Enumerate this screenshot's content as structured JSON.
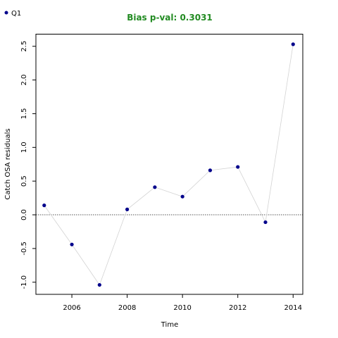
{
  "colors": {
    "title": "#228B22",
    "point": "#00008B",
    "line": "#D3D3D3",
    "zero_line": "#555555"
  },
  "chart_data": {
    "type": "scatter",
    "title": "Bias p-val: 0.3031",
    "xlabel": "Time",
    "ylabel": "Catch OSA residuals",
    "xlim": [
      2004.7,
      2014.35
    ],
    "ylim": [
      -1.18,
      2.68
    ],
    "x_ticks": [
      2006,
      2008,
      2010,
      2012,
      2014
    ],
    "y_ticks": [
      -1.0,
      -0.5,
      0.0,
      0.5,
      1.0,
      1.5,
      2.0,
      2.5
    ],
    "y_tick_labels": [
      "-1.0",
      "-0.5",
      "0.0",
      "0.5",
      "1.0",
      "1.5",
      "2.0",
      "2.5"
    ],
    "reference_line": {
      "y": 0.0,
      "style": "dotted"
    },
    "legend": {
      "placement": "top-left",
      "entries": [
        "Q1"
      ]
    },
    "series": [
      {
        "name": "Q1",
        "x": [
          2005,
          2006,
          2007,
          2008,
          2009,
          2010,
          2011,
          2012,
          2013,
          2014
        ],
        "y": [
          0.14,
          -0.44,
          -1.04,
          0.08,
          0.41,
          0.27,
          0.66,
          0.71,
          -0.11,
          2.53
        ]
      }
    ]
  }
}
